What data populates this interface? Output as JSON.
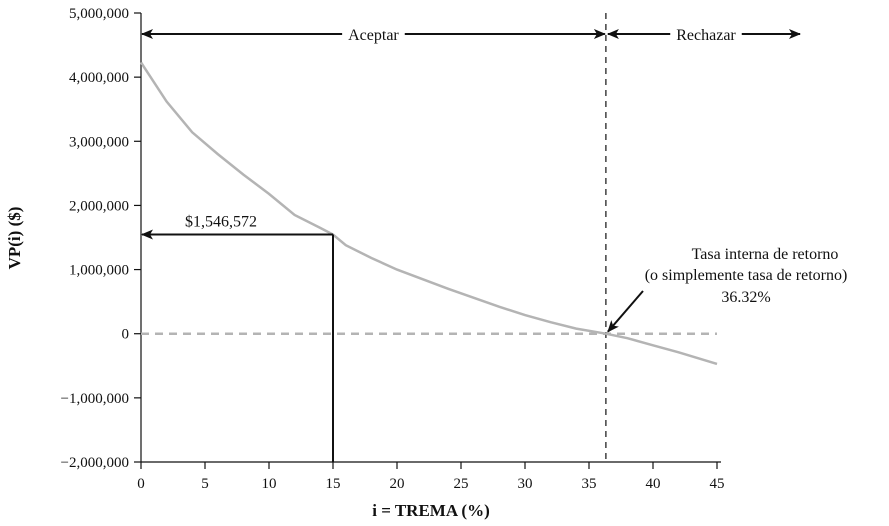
{
  "chart_data": {
    "type": "line",
    "title": "",
    "xlabel": "i = TREMA (%)",
    "ylabel": "VP(i) ($)",
    "xlim": [
      0,
      45
    ],
    "ylim": [
      -2000000,
      5000000
    ],
    "x_ticks": [
      0,
      5,
      10,
      15,
      20,
      25,
      30,
      35,
      40,
      45
    ],
    "y_ticks": [
      -2000000,
      -1000000,
      0,
      1000000,
      2000000,
      3000000,
      4000000,
      5000000
    ],
    "x_tick_labels": [
      "0",
      "5",
      "10",
      "15",
      "20",
      "25",
      "30",
      "35",
      "40",
      "45"
    ],
    "y_tick_labels": [
      "−2,000,000",
      "−1,000,000",
      "0",
      "1,000,000",
      "2,000,000",
      "3,000,000",
      "4,000,000",
      "5,000,000"
    ],
    "grid": false,
    "series": [
      {
        "color": "#b4b4b4",
        "x": [
          0,
          2,
          4,
          6,
          8,
          10,
          12,
          14,
          15,
          16,
          18,
          20,
          22,
          24,
          26,
          28,
          30,
          32,
          34,
          36.32,
          38,
          40,
          42,
          45
        ],
        "y": [
          4230000,
          3620000,
          3140000,
          2800000,
          2480000,
          2180000,
          1850000,
          1650000,
          1546572,
          1380000,
          1180000,
          1000000,
          850000,
          700000,
          560000,
          420000,
          290000,
          180000,
          80000,
          0,
          -70000,
          -180000,
          -290000,
          -470000
        ]
      }
    ],
    "reference_lines": {
      "zero_line": {
        "y": 0,
        "color": "#b4b4b4",
        "style": "dashed"
      },
      "irr_line": {
        "x": 36.32,
        "color": "#111111",
        "style": "dashed"
      }
    },
    "highlight": {
      "x": 15,
      "y": 1546572,
      "label": "$1,546,572"
    },
    "regions": {
      "accept_label": "Aceptar",
      "reject_label": "Rechazar"
    },
    "annotation": {
      "lines": [
        "Tasa interna de retorno",
        "(o simplemente tasa de retorno)",
        "36.32%"
      ]
    }
  }
}
